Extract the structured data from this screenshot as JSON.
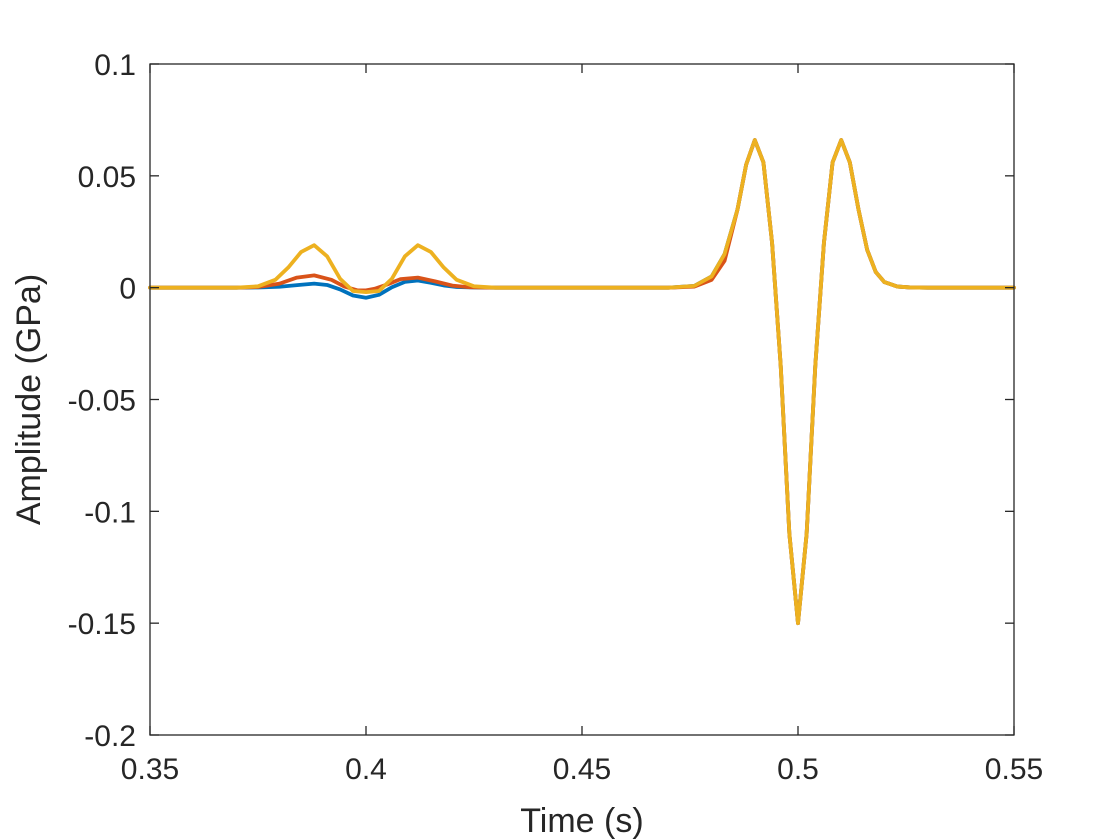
{
  "chart_data": {
    "type": "line",
    "title": "",
    "xlabel": "Time (s)",
    "ylabel": "Amplitude (GPa)",
    "xlim": [
      0.35,
      0.55
    ],
    "ylim": [
      -0.2,
      0.1
    ],
    "xticks": [
      0.35,
      0.4,
      0.45,
      0.5,
      0.55
    ],
    "xtick_labels": [
      "0.35",
      "0.4",
      "0.45",
      "0.5",
      "0.55"
    ],
    "yticks": [
      -0.2,
      -0.15,
      -0.1,
      -0.05,
      0,
      0.05,
      0.1
    ],
    "ytick_labels": [
      "-0.2",
      "-0.15",
      "-0.1",
      "-0.05",
      "0",
      "0.05",
      "0.1"
    ],
    "grid": false,
    "legend": "none",
    "series": [
      {
        "color": "#0072BD",
        "x": [
          0.35,
          0.37,
          0.375,
          0.38,
          0.385,
          0.388,
          0.391,
          0.394,
          0.397,
          0.4,
          0.403,
          0.406,
          0.409,
          0.412,
          0.415,
          0.418,
          0.421,
          0.425,
          0.43,
          0.47,
          0.476,
          0.48,
          0.483,
          0.486,
          0.488,
          0.49,
          0.492,
          0.494,
          0.496,
          0.498,
          0.5,
          0.502,
          0.504,
          0.506,
          0.508,
          0.51,
          0.512,
          0.514,
          0.516,
          0.518,
          0.52,
          0.523,
          0.526,
          0.53,
          0.55
        ],
        "y": [
          0,
          0,
          0.0001,
          0.0004,
          0.0013,
          0.0018,
          0.0012,
          -0.0008,
          -0.0035,
          -0.0045,
          -0.0032,
          0.0002,
          0.0026,
          0.0032,
          0.0022,
          0.001,
          0.0003,
          0.0001,
          0,
          0,
          0.0008,
          0.005,
          0.015,
          0.035,
          0.055,
          0.066,
          0.056,
          0.02,
          -0.035,
          -0.11,
          -0.15,
          -0.11,
          -0.035,
          0.02,
          0.056,
          0.066,
          0.056,
          0.035,
          0.017,
          0.007,
          0.0025,
          0.0005,
          0.0001,
          0,
          0
        ]
      },
      {
        "color": "#D95319",
        "x": [
          0.35,
          0.37,
          0.375,
          0.38,
          0.384,
          0.388,
          0.392,
          0.395,
          0.398,
          0.4,
          0.402,
          0.405,
          0.408,
          0.412,
          0.416,
          0.42,
          0.424,
          0.43,
          0.47,
          0.476,
          0.48,
          0.483,
          0.486,
          0.488,
          0.49,
          0.492,
          0.494,
          0.496,
          0.498,
          0.5,
          0.502,
          0.504,
          0.506,
          0.508,
          0.51,
          0.512,
          0.514,
          0.516,
          0.518,
          0.52,
          0.523,
          0.526,
          0.53,
          0.55
        ],
        "y": [
          0,
          0,
          0.0003,
          0.0018,
          0.0045,
          0.0055,
          0.0035,
          0.0005,
          -0.0012,
          -0.0012,
          -0.0005,
          0.0015,
          0.0038,
          0.0045,
          0.0028,
          0.0009,
          0.0002,
          0,
          0,
          0.0005,
          0.0035,
          0.012,
          0.035,
          0.055,
          0.066,
          0.056,
          0.02,
          -0.035,
          -0.11,
          -0.15,
          -0.11,
          -0.035,
          0.02,
          0.056,
          0.066,
          0.056,
          0.035,
          0.017,
          0.007,
          0.0025,
          0.0005,
          0.0001,
          0,
          0
        ]
      },
      {
        "color": "#EDB120",
        "x": [
          0.35,
          0.37,
          0.375,
          0.379,
          0.382,
          0.385,
          0.388,
          0.391,
          0.394,
          0.397,
          0.4,
          0.403,
          0.406,
          0.409,
          0.412,
          0.415,
          0.418,
          0.421,
          0.425,
          0.43,
          0.47,
          0.476,
          0.48,
          0.483,
          0.486,
          0.488,
          0.49,
          0.492,
          0.494,
          0.496,
          0.498,
          0.5,
          0.502,
          0.504,
          0.506,
          0.508,
          0.51,
          0.512,
          0.514,
          0.516,
          0.518,
          0.52,
          0.523,
          0.526,
          0.53,
          0.55
        ],
        "y": [
          0,
          0,
          0.0006,
          0.0035,
          0.009,
          0.016,
          0.019,
          0.014,
          0.004,
          -0.0015,
          -0.002,
          -0.0015,
          0.004,
          0.014,
          0.019,
          0.016,
          0.009,
          0.0035,
          0.0006,
          0,
          0,
          0.0008,
          0.005,
          0.015,
          0.035,
          0.055,
          0.066,
          0.056,
          0.02,
          -0.035,
          -0.11,
          -0.15,
          -0.11,
          -0.035,
          0.02,
          0.056,
          0.066,
          0.056,
          0.035,
          0.017,
          0.007,
          0.0025,
          0.0005,
          0.0001,
          0,
          0
        ]
      }
    ]
  }
}
